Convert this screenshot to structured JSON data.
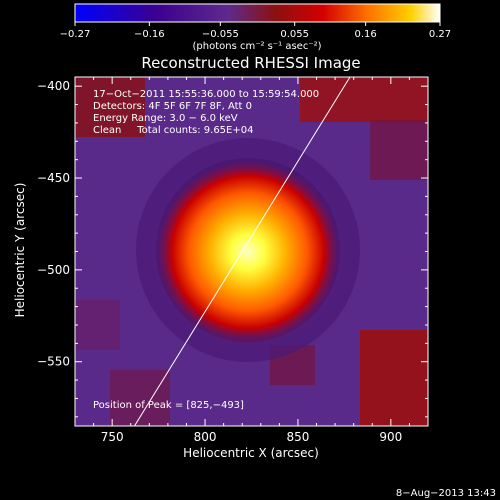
{
  "chart_data": {
    "type": "heatmap",
    "title": "Reconstructed RHESSI Image",
    "xlabel": "Heliocentric X (arcsec)",
    "ylabel": "Heliocentric Y (arcsec)",
    "xlim": [
      730,
      920
    ],
    "ylim": [
      -585,
      -395
    ],
    "x_ticks": [
      750,
      800,
      850,
      900
    ],
    "y_ticks": [
      -550,
      -500,
      -450,
      -400
    ],
    "x_tick_labels": [
      "750",
      "800",
      "850",
      "900"
    ],
    "y_tick_labels": [
      "−550",
      "−500",
      "−450",
      "−400"
    ],
    "colorbar": {
      "range": [
        -0.27,
        0.27
      ],
      "ticks": [
        -0.27,
        -0.16,
        -0.055,
        0.055,
        0.16,
        0.27
      ],
      "tick_labels": [
        "−0.27",
        "−0.16",
        "−0.055",
        "0.055",
        "0.16",
        "0.27"
      ],
      "units_text": "(photons cm⁻² s⁻¹ asec⁻²)",
      "colormap": [
        "#0000ff",
        "#4a0080",
        "#5a2a90",
        "#8a1010",
        "#d40000",
        "#ff7000",
        "#ffd000",
        "#ffff80",
        "#ffffff"
      ]
    },
    "info_lines": [
      "17−Oct−2011 15:55:36.000 to 15:59:54.000",
      "Detectors: 4F 5F 6F 7F 8F, Att 0",
      "Energy Range: 3.0 − 6.0 keV",
      "Clean     Total counts: 9.65E+04"
    ],
    "peak_label": "Position of Peak = [825,−493]",
    "peak": [
      825,
      -493
    ],
    "limb_line": [
      [
        762,
        -585
      ],
      [
        878,
        -395
      ]
    ],
    "timestamp": "8−Aug−2013 13:43"
  }
}
